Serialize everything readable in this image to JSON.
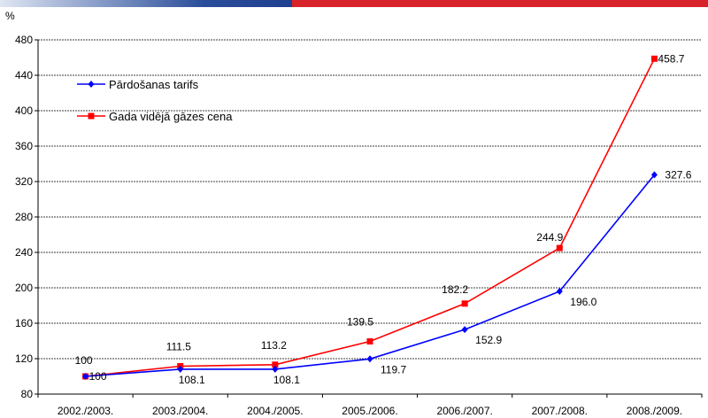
{
  "chart_data": {
    "type": "line",
    "title": "",
    "ylabel": "%",
    "xlabel": "",
    "ylim": [
      80,
      480
    ],
    "yticks": [
      80,
      120,
      160,
      200,
      240,
      280,
      320,
      360,
      400,
      440,
      480
    ],
    "grid": "horizontal dashed",
    "legend_position": "top-left",
    "categories": [
      "2002./2003.",
      "2003./2004.",
      "2004./2005.",
      "2005./2006.",
      "2006./2007.",
      "2007./2008.",
      "2008./2009."
    ],
    "series": [
      {
        "name": "Pārdošanas tarifs",
        "color": "#0000ff",
        "marker": "diamond",
        "values": [
          100,
          108.1,
          108.1,
          119.7,
          152.9,
          196.0,
          327.6
        ],
        "labels": [
          "100",
          "108.1",
          "108.1",
          "119.7",
          "152.9",
          "196.0",
          "327.6"
        ]
      },
      {
        "name": "Gada vidējā gāzes cena",
        "color": "#ff0000",
        "marker": "square",
        "values": [
          100,
          111.5,
          113.2,
          139.5,
          182.2,
          244.9,
          458.7
        ],
        "labels": [
          "100",
          "111.5",
          "113.2",
          "139.5",
          "182.2",
          "244.9",
          "458.7"
        ]
      }
    ]
  }
}
